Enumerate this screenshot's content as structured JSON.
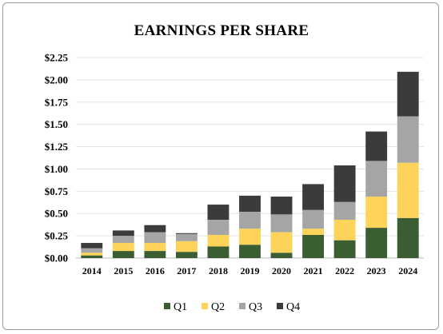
{
  "chart_data": {
    "type": "bar",
    "stacked": true,
    "title": "EARNINGS PER SHARE",
    "categories": [
      "2014",
      "2015",
      "2016",
      "2017",
      "2018",
      "2019",
      "2020",
      "2021",
      "2022",
      "2023",
      "2024"
    ],
    "series": [
      {
        "name": "Q1",
        "color": "#3a5e32",
        "values": [
          0.03,
          0.08,
          0.08,
          0.07,
          0.13,
          0.15,
          0.06,
          0.26,
          0.2,
          0.34,
          0.45
        ]
      },
      {
        "name": "Q2",
        "color": "#fdd35a",
        "values": [
          0.03,
          0.09,
          0.09,
          0.12,
          0.13,
          0.18,
          0.23,
          0.07,
          0.23,
          0.35,
          0.62
        ]
      },
      {
        "name": "Q3",
        "color": "#a5a5a5",
        "values": [
          0.05,
          0.08,
          0.12,
          0.08,
          0.17,
          0.19,
          0.2,
          0.21,
          0.2,
          0.4,
          0.52
        ]
      },
      {
        "name": "Q4",
        "color": "#3b3b3b",
        "values": [
          0.06,
          0.06,
          0.08,
          0.01,
          0.17,
          0.18,
          0.2,
          0.29,
          0.41,
          0.33,
          0.5
        ]
      }
    ],
    "ylim": [
      0,
      2.25
    ],
    "yticks": [
      "$0.00",
      "$0.25",
      "$0.50",
      "$0.75",
      "$1.00",
      "$1.25",
      "$1.50",
      "$1.75",
      "$2.00",
      "$2.25"
    ],
    "grid": true,
    "legend": "bottom"
  }
}
